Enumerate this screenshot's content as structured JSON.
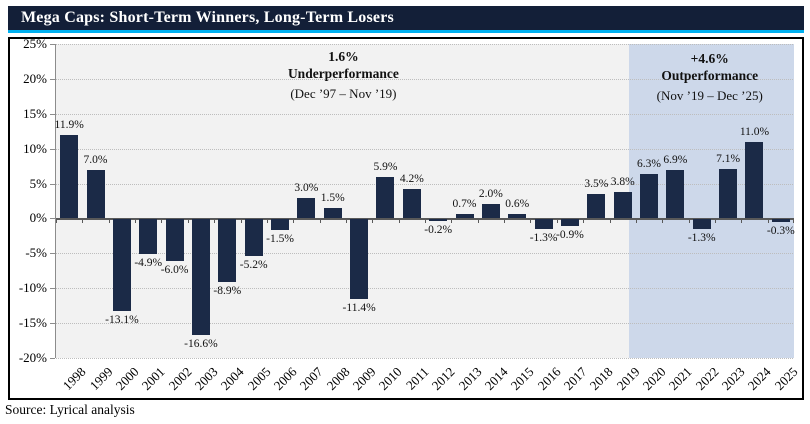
{
  "title_bar": {
    "title": "Mega Caps: Short-Term Winners, Long-Term Losers"
  },
  "source": "Source: Lyrical analysis",
  "annotations": {
    "underperformance": {
      "line1": "1.6%",
      "line2": "Underperformance",
      "dates": "(Dec ’97 – Nov ’19)"
    },
    "outperformance": {
      "line1": "+4.6%",
      "line2": "Outperformance",
      "dates": "(Nov ’19 – Dec ’25)"
    }
  },
  "colors": {
    "title_bg": "#131f38",
    "accent_cyan": "#00b0f0",
    "bar": "#1b2a47",
    "highlight_band": "#cdd8ea",
    "plot_bg": "#f2f2f2",
    "gridline": "#bdbdbd",
    "zero_line": "#595959"
  },
  "chart_data": {
    "type": "bar",
    "title": "Mega Caps: Short-Term Winners, Long-Term Losers",
    "categories": [
      "1998",
      "1999",
      "2000",
      "2001",
      "2002",
      "2003",
      "2004",
      "2005",
      "2006",
      "2007",
      "2008",
      "2009",
      "2010",
      "2011",
      "2012",
      "2013",
      "2014",
      "2015",
      "2016",
      "2017",
      "2018",
      "2019",
      "2020",
      "2021",
      "2022",
      "2023",
      "2024",
      "2025"
    ],
    "values": [
      11.9,
      7.0,
      -13.1,
      -4.9,
      -6.0,
      -16.6,
      -8.9,
      -5.2,
      -1.5,
      3.0,
      1.5,
      -11.4,
      5.9,
      4.2,
      -0.2,
      0.7,
      2.0,
      0.6,
      -1.3,
      -0.9,
      3.5,
      3.8,
      6.3,
      6.9,
      -1.3,
      7.1,
      11.0,
      -0.3
    ],
    "data_labels": [
      "11.9%",
      "7.0%",
      "-13.1%",
      "-4.9%",
      "-6.0%",
      "-16.6%",
      "-8.9%",
      "-5.2%",
      "-1.5%",
      "3.0%",
      "1.5%",
      "-11.4%",
      "5.9%",
      "4.2%",
      "-0.2%",
      "0.7%",
      "2.0%",
      "0.6%",
      "-1.3%",
      "-0.9%",
      "3.5%",
      "3.8%",
      "6.3%",
      "6.9%",
      "-1.3%",
      "7.1%",
      "11.0%",
      "-0.3%"
    ],
    "xlabel": "",
    "ylabel": "",
    "ylim": [
      -20,
      25
    ],
    "y_tick_interval": 5,
    "y_tick_labels": [
      "25%",
      "20%",
      "15%",
      "10%",
      "5%",
      "0%",
      "-5%",
      "-10%",
      "-15%",
      "-20%"
    ],
    "grid": "dotted-horizontal",
    "legend": "none",
    "highlight_region": {
      "from_category": "2020",
      "to_category": "2025",
      "label": "+4.6% Outperformance (Nov ’19 – Dec ’25)"
    }
  }
}
